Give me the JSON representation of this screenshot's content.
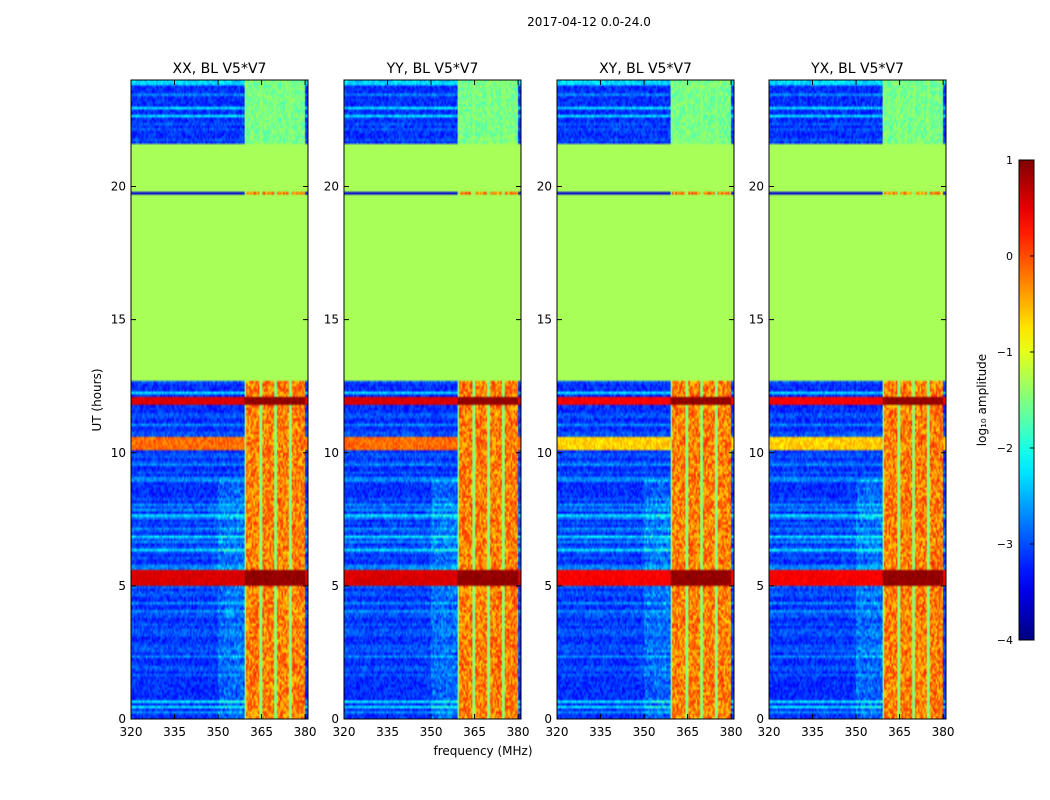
{
  "figure": {
    "suptitle": "2017-04-12 0.0-24.0",
    "ylabel": "UT (hours)",
    "xlabel": "frequency (MHz)",
    "colorbar_label": "log₁₀ amplitude"
  },
  "chart_data": {
    "type": "heatmap",
    "suptitle": "2017-04-12 0.0-24.0",
    "xlabel": "frequency (MHz)",
    "ylabel": "UT (hours)",
    "xlim": [
      320,
      381
    ],
    "ylim": [
      0,
      24
    ],
    "xticks": [
      320,
      335,
      350,
      365,
      380
    ],
    "yticks": [
      0,
      5,
      10,
      15,
      20
    ],
    "colorbar": {
      "label": "log₁₀ amplitude",
      "range": [
        -4,
        1
      ],
      "ticks": [
        1,
        0,
        -1,
        -2,
        -3,
        -4
      ],
      "tick_labels": [
        "1",
        "0",
        "−1",
        "−2",
        "−3",
        "−4"
      ],
      "colormap": "jet"
    },
    "panels": [
      {
        "title": "XX, BL V5*V7"
      },
      {
        "title": "YY, BL V5*V7"
      },
      {
        "title": "XY, BL V5*V7"
      },
      {
        "title": "YX, BL V5*V7"
      }
    ],
    "flagged_time_range_hours": [
      12.7,
      21.6
    ],
    "flagged_value": -1.3,
    "rfi_band_mhz": [
      359,
      380
    ],
    "strong_rfi_times_hours": [
      [
        5.0,
        5.6
      ],
      [
        11.8,
        12.1
      ]
    ]
  }
}
